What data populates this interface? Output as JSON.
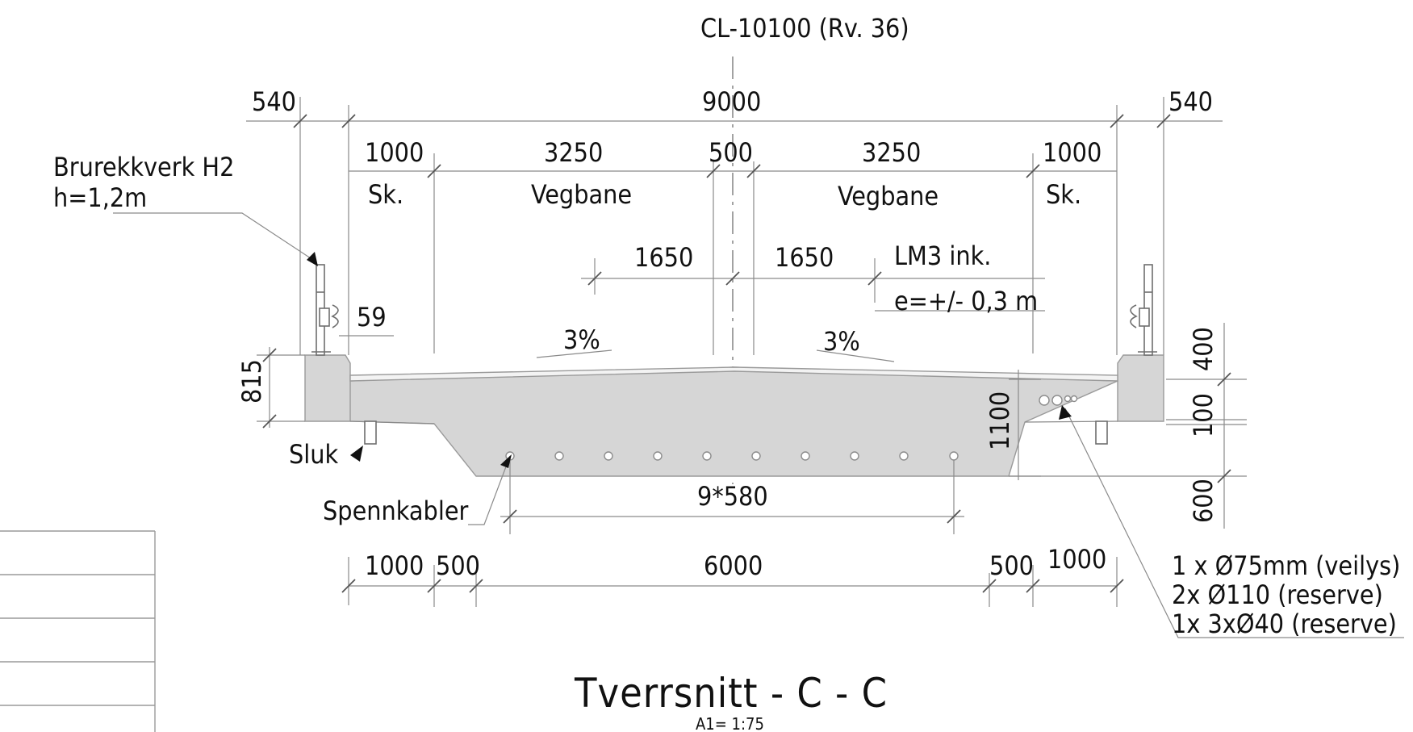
{
  "drawing": {
    "centerline_label": "CL-10100 (Rv. 36)",
    "top_dims": {
      "left_overhang": "540",
      "total": "9000",
      "right_overhang": "540"
    },
    "lane_dims": {
      "left_shoulder": "1000",
      "left_lane": "3250",
      "median": "500",
      "right_lane": "3250",
      "right_shoulder": "1000"
    },
    "lane_labels": {
      "left_shoulder": "Sk.",
      "left_lane": "Vegbane",
      "right_lane": "Vegbane",
      "right_shoulder": "Sk."
    },
    "load_dims": {
      "left": "1650",
      "right": "1650",
      "lm3_line1": "LM3 ink.",
      "lm3_line2": "e=+/- 0,3 m"
    },
    "slopes": {
      "left": "3%",
      "right": "3%"
    },
    "railing": {
      "line1": "Brurekkverk H2",
      "line2": "h=1,2m"
    },
    "small_dim": "59",
    "edge_height": "815",
    "deck_depth": "1100",
    "right_heights": [
      "400",
      "100",
      "600"
    ],
    "drain_label": "Sluk",
    "tendon_label": "Spennkabler",
    "tendon_spacing": "9*580",
    "bottom_dims": {
      "left_shoulder": "1000",
      "left_web": "500",
      "bottom_width": "6000",
      "right_web": "500",
      "right_shoulder": "1000"
    },
    "conduits": [
      "1 x Ø75mm (veilys)",
      "2x Ø110 (reserve)",
      "1x 3xØ40 (reserve)"
    ],
    "title": "Tverrsnitt  -  C - C",
    "scale": "A1= 1:75"
  }
}
